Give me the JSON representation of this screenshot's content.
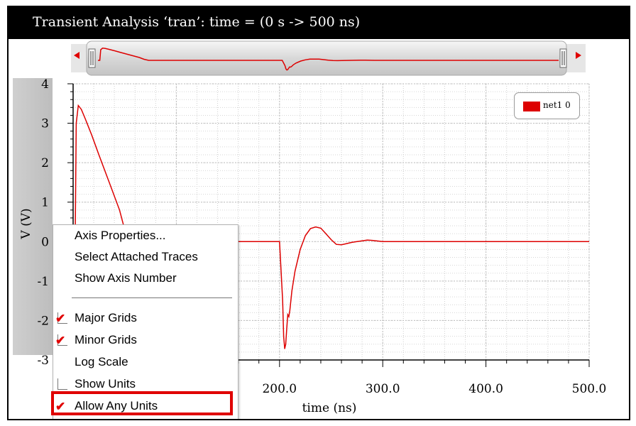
{
  "window": {
    "title": "Transient Analysis ‘tran’: time = (0 s -> 500 ns)"
  },
  "legend": {
    "label": "net1 0",
    "color": "#dd0000"
  },
  "y_axis": {
    "label": "V (V)",
    "ticks": [
      "4",
      "3",
      "2",
      "1",
      "0",
      "-1",
      "-2",
      "-3"
    ]
  },
  "x_axis": {
    "label": "time (ns)",
    "ticks": [
      "200.0",
      "300.0",
      "400.0",
      "500.0"
    ]
  },
  "context_menu": {
    "items": [
      {
        "label": "Axis Properties...",
        "checkbox": false,
        "checked": false
      },
      {
        "label": "Select Attached Traces",
        "checkbox": false,
        "checked": false
      },
      {
        "label": "Show Axis Number",
        "checkbox": false,
        "checked": false
      },
      {
        "label": "Major Grids",
        "checkbox": true,
        "checked": true
      },
      {
        "label": "Minor Grids",
        "checkbox": true,
        "checked": true
      },
      {
        "label": "Log Scale",
        "checkbox": false,
        "checked": false
      },
      {
        "label": "Show Units",
        "checkbox": true,
        "checked": false
      },
      {
        "label": "Allow Any Units",
        "checkbox": true,
        "checked": true
      }
    ]
  },
  "chart_data": {
    "type": "line",
    "title": "",
    "xlabel": "time (ns)",
    "ylabel": "V (V)",
    "xlim": [
      0,
      500
    ],
    "ylim": [
      -3,
      4
    ],
    "grid": true,
    "legend_position": "top-right",
    "series": [
      {
        "name": "net1 0",
        "color": "#dd0000",
        "x": [
          0,
          2,
          3,
          5,
          8,
          12,
          18,
          25,
          35,
          45,
          50,
          55,
          100,
          150,
          200,
          203,
          204,
          205,
          206,
          207,
          208,
          209,
          210,
          212,
          215,
          220,
          225,
          230,
          235,
          240,
          245,
          250,
          255,
          260,
          265,
          270,
          275,
          280,
          285,
          290,
          300,
          350,
          400,
          450,
          500
        ],
        "y": [
          0,
          0,
          3.0,
          3.45,
          3.35,
          3.1,
          2.7,
          2.2,
          1.5,
          0.8,
          0.3,
          0,
          0,
          0,
          0,
          -1.5,
          -2.4,
          -2.72,
          -2.6,
          -2.2,
          -1.85,
          -1.9,
          -1.75,
          -1.25,
          -0.75,
          -0.2,
          0.15,
          0.33,
          0.37,
          0.34,
          0.2,
          0.05,
          -0.07,
          -0.08,
          -0.05,
          -0.02,
          0.0,
          0.02,
          0.04,
          0.03,
          0.0,
          0.0,
          0.0,
          0.0,
          0.0
        ]
      }
    ]
  }
}
